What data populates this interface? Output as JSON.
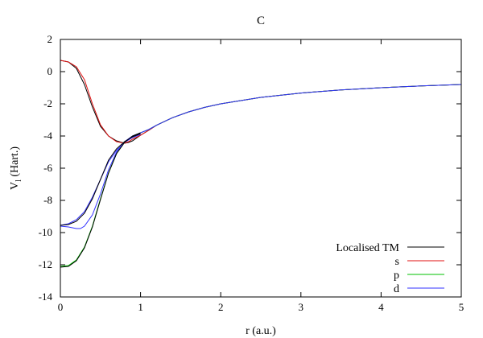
{
  "chart_data": {
    "type": "line",
    "title": "C",
    "xlabel": "r (a.u.)",
    "ylabel": {
      "main": "V",
      "sub": "l",
      "suffix": " (Hart.)"
    },
    "xlim": [
      0,
      5
    ],
    "ylim": [
      -14,
      2
    ],
    "xticks": [
      0,
      1,
      2,
      3,
      4,
      5
    ],
    "yticks": [
      2,
      0,
      -2,
      -4,
      -6,
      -8,
      -10,
      -12,
      -14
    ],
    "grid": false,
    "legend_position": "bottom-right",
    "series": [
      {
        "name": "Localised TM",
        "color": "#000000",
        "x": [
          0,
          0.1,
          0.2,
          0.3,
          0.4,
          0.5,
          0.6,
          0.7,
          0.8,
          0.85,
          0.9,
          1.0,
          1.1,
          1.2,
          1.4,
          1.6,
          1.8,
          2.0,
          2.5,
          3.0,
          3.5,
          4.0,
          4.5,
          5.0
        ],
        "y": [
          0.7,
          0.6,
          0.2,
          -0.8,
          -2.2,
          -3.4,
          -4.0,
          -4.3,
          -4.45,
          -4.4,
          -4.3,
          -3.95,
          -3.65,
          -3.33,
          -2.86,
          -2.5,
          -2.22,
          -2.0,
          -1.6,
          -1.33,
          -1.14,
          -1.0,
          -0.89,
          -0.8
        ]
      },
      {
        "name": "s",
        "color": "#e01010",
        "x": [
          0,
          0.1,
          0.2,
          0.3,
          0.4,
          0.5,
          0.6,
          0.7,
          0.8,
          0.85,
          0.9,
          1.0,
          1.1,
          1.2,
          1.4,
          1.6,
          1.8,
          2.0,
          2.5,
          3.0,
          3.5,
          4.0,
          4.5,
          5.0
        ],
        "y": [
          0.7,
          0.6,
          0.3,
          -0.5,
          -2.0,
          -3.3,
          -4.0,
          -4.35,
          -4.45,
          -4.35,
          -4.2,
          -3.95,
          -3.65,
          -3.33,
          -2.86,
          -2.5,
          -2.22,
          -2.0,
          -1.6,
          -1.33,
          -1.14,
          -1.0,
          -0.89,
          -0.8
        ]
      },
      {
        "name": "p",
        "color": "#00c000",
        "x": [
          0,
          0.1,
          0.2,
          0.3,
          0.4,
          0.5,
          0.6,
          0.7,
          0.8,
          0.9,
          1.0,
          1.1,
          1.2,
          1.4,
          1.6,
          1.8,
          2.0,
          2.5,
          3.0,
          3.5,
          4.0,
          4.5,
          5.0
        ],
        "y": [
          -12.1,
          -12.05,
          -11.7,
          -10.9,
          -9.6,
          -7.9,
          -6.3,
          -5.1,
          -4.4,
          -4.0,
          -3.8,
          -3.6,
          -3.33,
          -2.86,
          -2.5,
          -2.22,
          -2.0,
          -1.6,
          -1.33,
          -1.14,
          -1.0,
          -0.89,
          -0.8
        ]
      },
      {
        "name": "d",
        "color": "#3030ff",
        "x": [
          0,
          0.1,
          0.2,
          0.25,
          0.3,
          0.4,
          0.5,
          0.6,
          0.7,
          0.8,
          0.9,
          1.0,
          1.1,
          1.2,
          1.4,
          1.6,
          1.8,
          2.0,
          2.5,
          3.0,
          3.5,
          4.0,
          4.5,
          5.0
        ],
        "y": [
          -9.6,
          -9.65,
          -9.75,
          -9.75,
          -9.6,
          -8.9,
          -7.6,
          -6.1,
          -5.0,
          -4.35,
          -4.0,
          -3.8,
          -3.6,
          -3.33,
          -2.86,
          -2.5,
          -2.22,
          -2.0,
          -1.6,
          -1.33,
          -1.14,
          -1.0,
          -0.89,
          -0.8
        ]
      },
      {
        "name": "",
        "color": "#3030ff",
        "x": [
          0,
          0.1,
          0.2,
          0.3,
          0.4,
          0.5,
          0.6,
          0.7,
          0.8,
          0.9,
          1.0
        ],
        "y": [
          -9.55,
          -9.45,
          -9.2,
          -8.7,
          -7.8,
          -6.7,
          -5.6,
          -4.9,
          -4.4,
          -4.1,
          -3.9
        ]
      },
      {
        "name": "",
        "color": "#000000",
        "x": [
          0,
          0.1,
          0.2,
          0.3,
          0.4,
          0.5,
          0.6,
          0.7,
          0.8,
          0.9,
          1.0
        ],
        "y": [
          -9.55,
          -9.5,
          -9.3,
          -8.8,
          -7.9,
          -6.7,
          -5.5,
          -4.8,
          -4.35,
          -4.05,
          -3.85
        ]
      },
      {
        "name": "",
        "color": "#000000",
        "x": [
          0,
          0.1,
          0.2,
          0.3,
          0.4,
          0.5,
          0.6,
          0.7,
          0.8,
          0.9,
          1.0
        ],
        "y": [
          -12.15,
          -12.1,
          -11.75,
          -10.95,
          -9.65,
          -7.95,
          -6.3,
          -5.1,
          -4.4,
          -4.0,
          -3.8
        ]
      }
    ]
  }
}
